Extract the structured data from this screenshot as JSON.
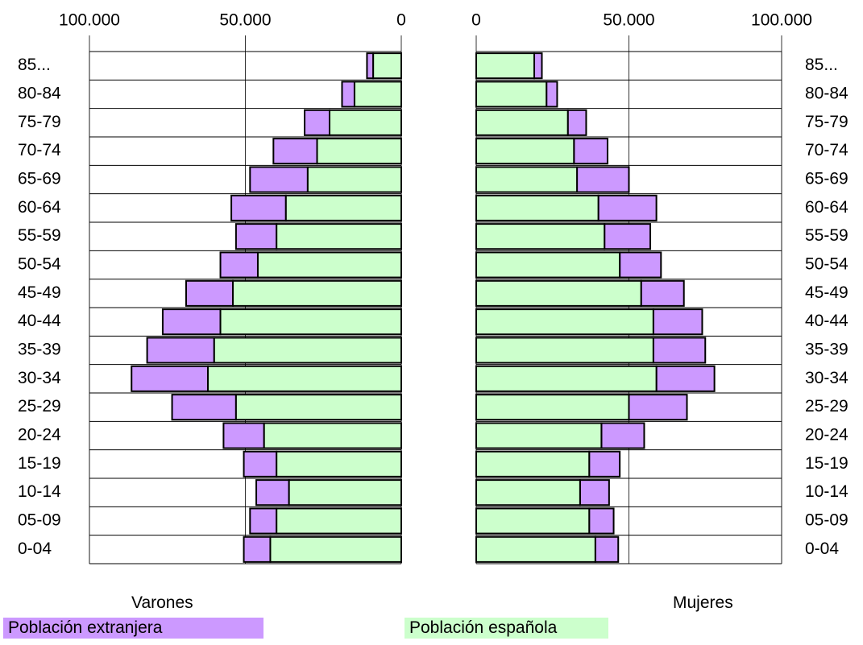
{
  "colors": {
    "foreign": "#cc99ff",
    "spanish": "#ccffcc",
    "stroke": "#000000",
    "grid": "#000000"
  },
  "chart_data": {
    "type": "bar",
    "orientation": "horizontal",
    "layout": "population-pyramid",
    "categories": [
      "0-04",
      "05-09",
      "10-14",
      "15-19",
      "20-24",
      "25-29",
      "30-34",
      "35-39",
      "40-44",
      "45-49",
      "50-54",
      "55-59",
      "60-64",
      "65-69",
      "70-74",
      "75-79",
      "80-84",
      "85..."
    ],
    "category_labels_left": [
      "0-04",
      "05-09",
      "10-14 ",
      "15-19",
      "20-24",
      "25-29",
      "30-34",
      "35-39",
      "40-44",
      "45-49",
      "50-54",
      "55-59",
      "60-64",
      "65-69",
      "70-74",
      "75-79",
      "80-84",
      "85..."
    ],
    "category_labels_right": [
      "0-04",
      "05-09",
      "10-14",
      "15-19",
      "20-24",
      "25-29",
      "30-34",
      "35-39",
      "40-44",
      "45-49",
      "50-54",
      "55-59",
      "60-64",
      "65-69",
      "70-74",
      "75-79",
      "80-84",
      "85..."
    ],
    "stacked": true,
    "panels": [
      {
        "side": "left",
        "label": "Varones",
        "xlim": [
          0,
          100000
        ],
        "reversed": true,
        "ticks": [
          100000,
          50000,
          0
        ],
        "tick_labels": [
          "100.000",
          "50.000",
          "0"
        ],
        "series": [
          {
            "name": "Población española",
            "values": [
              42000,
              40000,
              36000,
              40000,
              44000,
              53000,
              62000,
              60000,
              58000,
              54000,
              46000,
              40000,
              37000,
              30000,
              27000,
              23000,
              15000,
              9000
            ]
          },
          {
            "name": "Población extranjera",
            "values": [
              8500,
              8500,
              10500,
              10500,
              13000,
              20500,
              24500,
              21500,
              18500,
              15000,
              12000,
              13000,
              17500,
              18500,
              14000,
              8000,
              4000,
              2000
            ]
          }
        ]
      },
      {
        "side": "right",
        "label": "Mujeres",
        "xlim": [
          0,
          100000
        ],
        "reversed": false,
        "ticks": [
          0,
          50000,
          100000
        ],
        "tick_labels": [
          "0",
          "50.000",
          "100.000"
        ],
        "series": [
          {
            "name": "Población española",
            "values": [
              39000,
              37000,
              34000,
              37000,
              41000,
              50000,
              59000,
              58000,
              58000,
              54000,
              47000,
              42000,
              40000,
              33000,
              32000,
              30000,
              23000,
              19000
            ]
          },
          {
            "name": "Población extranjera",
            "values": [
              7500,
              8000,
              9500,
              10000,
              14000,
              19000,
              19000,
              17000,
              16000,
              14000,
              13500,
              15000,
              19000,
              17000,
              11000,
              6000,
              3500,
              2500
            ]
          }
        ]
      }
    ],
    "legend": [
      {
        "name": "Población extranjera",
        "color": "#cc99ff"
      },
      {
        "name": "Población española",
        "color": "#ccffcc"
      }
    ],
    "grid": true
  }
}
